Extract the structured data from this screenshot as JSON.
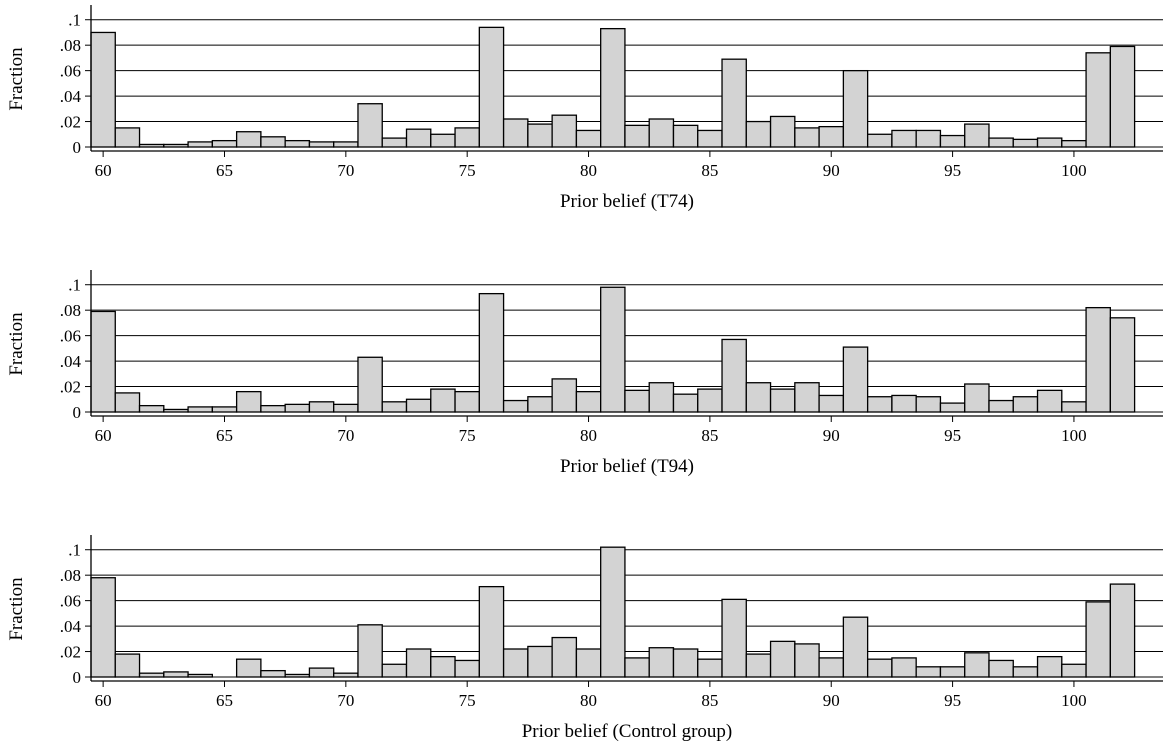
{
  "colors": {
    "bar_fill": "#d3d3d3",
    "bar_stroke": "#000000",
    "grid": "#000000"
  },
  "chart_data": [
    {
      "type": "bar",
      "xlabel": "Prior belief (T74)",
      "ylabel": "Fraction",
      "x_ticks": [
        "60",
        "65",
        "70",
        "75",
        "80",
        "85",
        "90",
        "95",
        "100"
      ],
      "y_ticks": [
        "0",
        ".02",
        ".04",
        ".06",
        ".08",
        ".1"
      ],
      "ylim": [
        0,
        0.11
      ],
      "grid": true,
      "bin_width": 1,
      "x": [
        60,
        61,
        62,
        63,
        64,
        65,
        66,
        67,
        68,
        69,
        70,
        71,
        72,
        73,
        74,
        75,
        76,
        77,
        78,
        79,
        80,
        81,
        82,
        83,
        84,
        85,
        86,
        87,
        88,
        89,
        90,
        91,
        92,
        93,
        94,
        95,
        96,
        97,
        98,
        99,
        100,
        101,
        102
      ],
      "values": [
        0.09,
        0.015,
        0.002,
        0.002,
        0.004,
        0.005,
        0.012,
        0.008,
        0.005,
        0.004,
        0.004,
        0.034,
        0.007,
        0.014,
        0.01,
        0.015,
        0.094,
        0.022,
        0.018,
        0.025,
        0.013,
        0.093,
        0.017,
        0.022,
        0.017,
        0.013,
        0.069,
        0.02,
        0.024,
        0.015,
        0.016,
        0.06,
        0.01,
        0.013,
        0.013,
        0.009,
        0.018,
        0.007,
        0.006,
        0.007,
        0.005,
        0.074,
        0.079
      ]
    },
    {
      "type": "bar",
      "xlabel": "Prior belief (T94)",
      "ylabel": "Fraction",
      "x_ticks": [
        "60",
        "65",
        "70",
        "75",
        "80",
        "85",
        "90",
        "95",
        "100"
      ],
      "y_ticks": [
        "0",
        ".02",
        ".04",
        ".06",
        ".08",
        ".1"
      ],
      "ylim": [
        0,
        0.11
      ],
      "grid": true,
      "bin_width": 1,
      "x": [
        60,
        61,
        62,
        63,
        64,
        65,
        66,
        67,
        68,
        69,
        70,
        71,
        72,
        73,
        74,
        75,
        76,
        77,
        78,
        79,
        80,
        81,
        82,
        83,
        84,
        85,
        86,
        87,
        88,
        89,
        90,
        91,
        92,
        93,
        94,
        95,
        96,
        97,
        98,
        99,
        100,
        101,
        102
      ],
      "values": [
        0.079,
        0.015,
        0.005,
        0.002,
        0.004,
        0.004,
        0.016,
        0.005,
        0.006,
        0.008,
        0.006,
        0.043,
        0.008,
        0.01,
        0.018,
        0.016,
        0.093,
        0.009,
        0.012,
        0.026,
        0.016,
        0.098,
        0.017,
        0.023,
        0.014,
        0.018,
        0.057,
        0.023,
        0.018,
        0.023,
        0.013,
        0.051,
        0.012,
        0.013,
        0.012,
        0.007,
        0.022,
        0.009,
        0.012,
        0.017,
        0.008,
        0.082,
        0.074
      ]
    },
    {
      "type": "bar",
      "xlabel": "Prior belief (Control group)",
      "ylabel": "Fraction",
      "x_ticks": [
        "60",
        "65",
        "70",
        "75",
        "80",
        "85",
        "90",
        "95",
        "100"
      ],
      "y_ticks": [
        "0",
        ".02",
        ".04",
        ".06",
        ".08",
        ".1"
      ],
      "ylim": [
        0,
        0.11
      ],
      "grid": true,
      "bin_width": 1,
      "x": [
        60,
        61,
        62,
        63,
        64,
        65,
        66,
        67,
        68,
        69,
        70,
        71,
        72,
        73,
        74,
        75,
        76,
        77,
        78,
        79,
        80,
        81,
        82,
        83,
        84,
        85,
        86,
        87,
        88,
        89,
        90,
        91,
        92,
        93,
        94,
        95,
        96,
        97,
        98,
        99,
        100,
        101,
        102
      ],
      "values": [
        0.078,
        0.018,
        0.003,
        0.004,
        0.002,
        0.0,
        0.014,
        0.005,
        0.002,
        0.007,
        0.003,
        0.041,
        0.01,
        0.022,
        0.016,
        0.013,
        0.071,
        0.022,
        0.024,
        0.031,
        0.022,
        0.102,
        0.015,
        0.023,
        0.022,
        0.014,
        0.061,
        0.018,
        0.028,
        0.026,
        0.015,
        0.047,
        0.014,
        0.015,
        0.008,
        0.008,
        0.019,
        0.013,
        0.008,
        0.016,
        0.01,
        0.059,
        0.073
      ]
    }
  ]
}
